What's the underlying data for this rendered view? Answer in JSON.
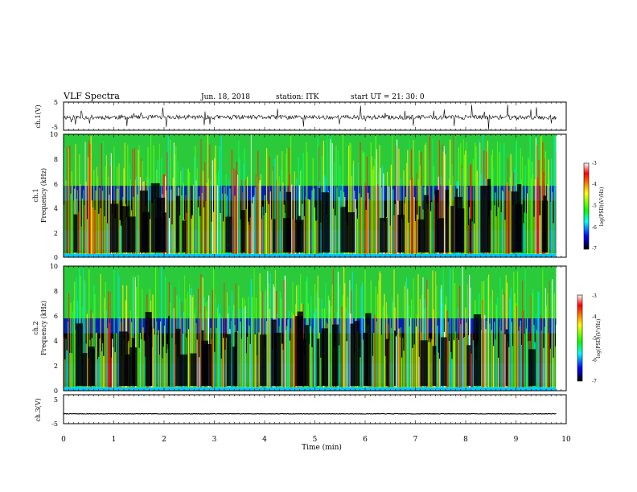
{
  "header": {
    "title": "VLF Spectra",
    "date": "Jun. 18, 2018",
    "station": "station: ITK",
    "start_time": "start UT =  21: 30: 0"
  },
  "colorbar": {
    "ticks": [
      "-3",
      "-4",
      "-5",
      "-6",
      "-7"
    ],
    "label": "log(PSD)(V²/Hz)",
    "colors": [
      "#ffffff",
      "#ff0000",
      "#ffff00",
      "#00ff00",
      "#00ffff",
      "#0000ff",
      "#000000"
    ]
  },
  "chart_data": [
    {
      "type": "line",
      "name": "ch1-waveform",
      "ylabel": "ch.1(V)",
      "yticks": [
        "5",
        "-5"
      ],
      "ylim": [
        -5,
        5
      ],
      "xlim": [
        0,
        10
      ],
      "baseline_v": -0.4,
      "duration_min": 9.8
    },
    {
      "type": "heatmap",
      "name": "ch1-spectrogram",
      "ylabel": "ch.1\nFrequency (kHz)",
      "yticks": [
        "0",
        "2",
        "4",
        "6",
        "8",
        "10"
      ],
      "ylim": [
        0,
        10
      ],
      "xlim": [
        0,
        10
      ],
      "duration_min": 9.8,
      "zlim": [
        -7,
        -3
      ]
    },
    {
      "type": "heatmap",
      "name": "ch2-spectrogram",
      "ylabel": "ch.2\nFrequency (kHz)",
      "yticks": [
        "0",
        "2",
        "4",
        "6",
        "8",
        "10"
      ],
      "ylim": [
        0,
        10
      ],
      "xlim": [
        0,
        10
      ],
      "duration_min": 9.8,
      "zlim": [
        -7,
        -3
      ]
    },
    {
      "type": "line",
      "name": "ch3-waveform",
      "ylabel": "ch.3(V)",
      "yticks": [
        "5",
        "-5"
      ],
      "ylim": [
        -5,
        5
      ],
      "xlim": [
        0,
        10
      ],
      "baseline_v": -1.6,
      "duration_min": 9.8
    }
  ],
  "xaxis": {
    "label": "Time (min)",
    "ticks": [
      "0",
      "1",
      "2",
      "3",
      "4",
      "5",
      "6",
      "7",
      "8",
      "9",
      "10"
    ]
  }
}
